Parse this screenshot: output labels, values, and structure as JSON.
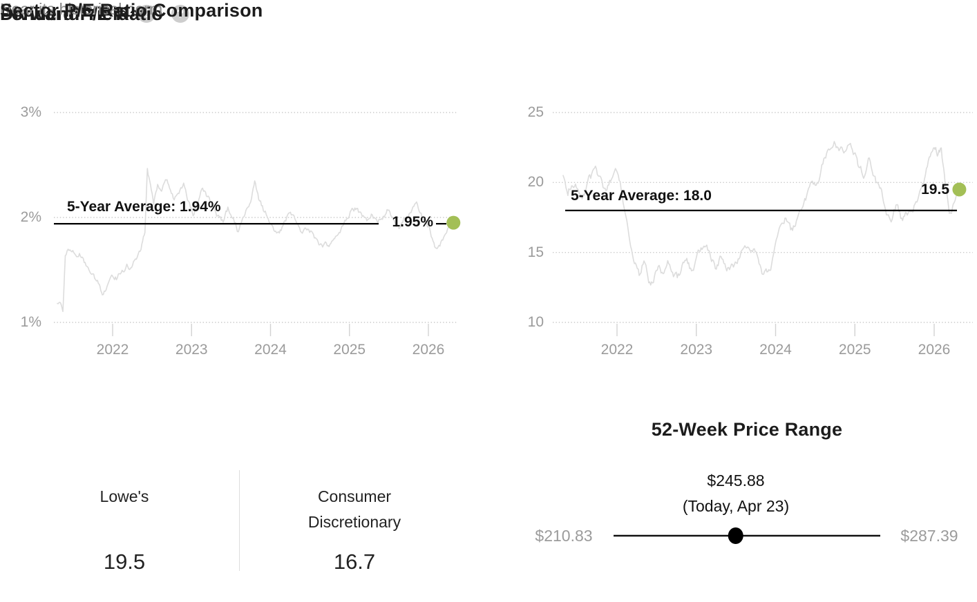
{
  "colors": {
    "accent_green": "#a3bf56",
    "series_line": "#dcdcdc",
    "grid": "#c9c9c9",
    "tick_mark": "#d2d2d2",
    "axis_text": "#9b9b9b",
    "avg_line": "#000000",
    "slider_line": "#111111",
    "slider_dot": "#000000",
    "subtitle_text": "#8f8f8f",
    "divider": "#dddddd",
    "help_icon_bg": "#cdcdcd"
  },
  "icons": {
    "help_glyph": "?"
  },
  "chart_data": [
    {
      "type": "line",
      "title": "Dividend Yield",
      "subtitle": "Near its historical norm",
      "series_name": "Dividend Yield (%)",
      "xlabel": "",
      "ylabel": "",
      "ylim": [
        1,
        3
      ],
      "xlim": [
        2021.3,
        2026.35
      ],
      "grid": "dotted horizontal",
      "legend": "none",
      "yticks": [
        {
          "value": 3,
          "label": "3%"
        },
        {
          "value": 2,
          "label": "2%"
        },
        {
          "value": 1,
          "label": "1%"
        }
      ],
      "xticks": [
        {
          "value": 2022,
          "label": "2022"
        },
        {
          "value": 2023,
          "label": "2023"
        },
        {
          "value": 2024,
          "label": "2024"
        },
        {
          "value": 2025,
          "label": "2025"
        },
        {
          "value": 2026,
          "label": "2026"
        }
      ],
      "average": {
        "value": 1.94,
        "label": "5-Year Average: 1.94%"
      },
      "current": {
        "value": 1.95,
        "label": "1.95%"
      },
      "points": [
        [
          2021.3,
          1.18
        ],
        [
          2021.34,
          1.22
        ],
        [
          2021.37,
          1.16
        ],
        [
          2021.4,
          1.68
        ],
        [
          2021.46,
          1.72
        ],
        [
          2021.52,
          1.66
        ],
        [
          2021.58,
          1.68
        ],
        [
          2021.64,
          1.58
        ],
        [
          2021.7,
          1.5
        ],
        [
          2021.76,
          1.44
        ],
        [
          2021.82,
          1.36
        ],
        [
          2021.87,
          1.24
        ],
        [
          2021.93,
          1.36
        ],
        [
          2022.0,
          1.42
        ],
        [
          2022.06,
          1.42
        ],
        [
          2022.12,
          1.5
        ],
        [
          2022.18,
          1.56
        ],
        [
          2022.24,
          1.52
        ],
        [
          2022.3,
          1.6
        ],
        [
          2022.36,
          1.68
        ],
        [
          2022.41,
          1.85
        ],
        [
          2022.44,
          2.45
        ],
        [
          2022.48,
          2.28
        ],
        [
          2022.52,
          2.12
        ],
        [
          2022.57,
          2.3
        ],
        [
          2022.62,
          2.22
        ],
        [
          2022.67,
          2.35
        ],
        [
          2022.72,
          2.28
        ],
        [
          2022.78,
          2.16
        ],
        [
          2022.84,
          2.24
        ],
        [
          2022.9,
          2.32
        ],
        [
          2022.96,
          2.18
        ],
        [
          2023.02,
          2.05
        ],
        [
          2023.08,
          2.14
        ],
        [
          2023.14,
          2.26
        ],
        [
          2023.2,
          2.18
        ],
        [
          2023.27,
          2.1
        ],
        [
          2023.33,
          2.02
        ],
        [
          2023.4,
          1.96
        ],
        [
          2023.46,
          2.06
        ],
        [
          2023.52,
          1.98
        ],
        [
          2023.58,
          1.88
        ],
        [
          2023.64,
          1.96
        ],
        [
          2023.7,
          2.08
        ],
        [
          2023.76,
          2.2
        ],
        [
          2023.8,
          2.38
        ],
        [
          2023.85,
          2.2
        ],
        [
          2023.91,
          2.08
        ],
        [
          2023.97,
          2.0
        ],
        [
          2024.03,
          1.94
        ],
        [
          2024.1,
          1.84
        ],
        [
          2024.17,
          1.92
        ],
        [
          2024.24,
          2.02
        ],
        [
          2024.31,
          1.96
        ],
        [
          2024.38,
          1.88
        ],
        [
          2024.45,
          1.94
        ],
        [
          2024.52,
          1.86
        ],
        [
          2024.59,
          1.78
        ],
        [
          2024.66,
          1.72
        ],
        [
          2024.73,
          1.7
        ],
        [
          2024.8,
          1.78
        ],
        [
          2024.87,
          1.86
        ],
        [
          2024.94,
          1.94
        ],
        [
          2025.01,
          2.04
        ],
        [
          2025.08,
          2.08
        ],
        [
          2025.15,
          2.02
        ],
        [
          2025.22,
          1.98
        ],
        [
          2025.29,
          2.06
        ],
        [
          2025.36,
          1.96
        ],
        [
          2025.43,
          2.0
        ],
        [
          2025.5,
          2.08
        ],
        [
          2025.57,
          1.98
        ],
        [
          2025.64,
          1.92
        ],
        [
          2025.71,
          2.0
        ],
        [
          2025.78,
          2.06
        ],
        [
          2025.85,
          2.1
        ],
        [
          2025.92,
          2.0
        ],
        [
          2026.0,
          1.92
        ],
        [
          2026.06,
          1.78
        ],
        [
          2026.11,
          1.7
        ],
        [
          2026.17,
          1.78
        ],
        [
          2026.23,
          1.88
        ],
        [
          2026.3,
          1.95
        ]
      ]
    },
    {
      "type": "line",
      "title": "Forward P/E Ratio",
      "subtitle": "Near its historical norm",
      "series_name": "Forward P/E Ratio",
      "xlabel": "",
      "ylabel": "",
      "ylim": [
        10,
        25
      ],
      "xlim": [
        2021.3,
        2026.35
      ],
      "grid": "dotted horizontal",
      "legend": "none",
      "yticks": [
        {
          "value": 25,
          "label": "25"
        },
        {
          "value": 20,
          "label": "20"
        },
        {
          "value": 15,
          "label": "15"
        },
        {
          "value": 10,
          "label": "10"
        }
      ],
      "xticks": [
        {
          "value": 2022,
          "label": "2022"
        },
        {
          "value": 2023,
          "label": "2023"
        },
        {
          "value": 2024,
          "label": "2024"
        },
        {
          "value": 2025,
          "label": "2025"
        },
        {
          "value": 2026,
          "label": "2026"
        }
      ],
      "average": {
        "value": 18.0,
        "label": "5-Year Average: 18.0"
      },
      "current": {
        "value": 19.5,
        "label": "19.5"
      },
      "points": [
        [
          2021.32,
          20.5
        ],
        [
          2021.38,
          19.2
        ],
        [
          2021.44,
          20.2
        ],
        [
          2021.5,
          19.6
        ],
        [
          2021.56,
          19.0
        ],
        [
          2021.62,
          19.8
        ],
        [
          2021.68,
          20.2
        ],
        [
          2021.74,
          20.8
        ],
        [
          2021.8,
          20.2
        ],
        [
          2021.86,
          19.4
        ],
        [
          2021.92,
          20.2
        ],
        [
          2021.98,
          21.0
        ],
        [
          2022.04,
          20.0
        ],
        [
          2022.1,
          18.0
        ],
        [
          2022.16,
          16.4
        ],
        [
          2022.22,
          15.0
        ],
        [
          2022.28,
          13.8
        ],
        [
          2022.34,
          14.8
        ],
        [
          2022.4,
          13.2
        ],
        [
          2022.46,
          12.9
        ],
        [
          2022.52,
          14.2
        ],
        [
          2022.58,
          13.5
        ],
        [
          2022.64,
          14.5
        ],
        [
          2022.7,
          13.1
        ],
        [
          2022.76,
          12.8
        ],
        [
          2022.82,
          13.8
        ],
        [
          2022.88,
          14.3
        ],
        [
          2022.94,
          13.6
        ],
        [
          2023.0,
          14.5
        ],
        [
          2023.06,
          15.1
        ],
        [
          2023.12,
          15.8
        ],
        [
          2023.18,
          15.1
        ],
        [
          2023.24,
          14.3
        ],
        [
          2023.3,
          14.8
        ],
        [
          2023.36,
          14.0
        ],
        [
          2023.42,
          13.7
        ],
        [
          2023.48,
          14.2
        ],
        [
          2023.54,
          14.6
        ],
        [
          2023.6,
          15.2
        ],
        [
          2023.66,
          15.8
        ],
        [
          2023.72,
          15.2
        ],
        [
          2023.78,
          14.4
        ],
        [
          2023.84,
          13.4
        ],
        [
          2023.89,
          13.1
        ],
        [
          2023.95,
          14.2
        ],
        [
          2024.01,
          15.4
        ],
        [
          2024.07,
          16.4
        ],
        [
          2024.13,
          17.3
        ],
        [
          2024.19,
          16.5
        ],
        [
          2024.25,
          17.0
        ],
        [
          2024.31,
          17.6
        ],
        [
          2024.38,
          18.4
        ],
        [
          2024.44,
          19.2
        ],
        [
          2024.5,
          19.8
        ],
        [
          2024.56,
          20.6
        ],
        [
          2024.62,
          21.6
        ],
        [
          2024.68,
          22.6
        ],
        [
          2024.74,
          23.4
        ],
        [
          2024.8,
          22.4
        ],
        [
          2024.86,
          21.9
        ],
        [
          2024.92,
          22.8
        ],
        [
          2024.98,
          22.1
        ],
        [
          2025.05,
          21.0
        ],
        [
          2025.11,
          20.3
        ],
        [
          2025.17,
          21.3
        ],
        [
          2025.23,
          20.5
        ],
        [
          2025.29,
          19.4
        ],
        [
          2025.35,
          18.7
        ],
        [
          2025.41,
          17.9
        ],
        [
          2025.47,
          17.5
        ],
        [
          2025.53,
          18.3
        ],
        [
          2025.59,
          17.2
        ],
        [
          2025.65,
          17.8
        ],
        [
          2025.71,
          18.3
        ],
        [
          2025.77,
          18.9
        ],
        [
          2025.83,
          19.4
        ],
        [
          2025.89,
          20.4
        ],
        [
          2025.95,
          21.6
        ],
        [
          2026.0,
          22.6
        ],
        [
          2026.05,
          21.9
        ],
        [
          2026.09,
          22.3
        ],
        [
          2026.14,
          19.9
        ],
        [
          2026.19,
          17.9
        ],
        [
          2026.24,
          18.7
        ],
        [
          2026.3,
          19.5
        ]
      ]
    }
  ],
  "sector_comparison": {
    "title": "Sector P/E Ratio Comparison",
    "columns": [
      {
        "name": "Lowe's",
        "value": "19.5"
      },
      {
        "name": "Consumer Discretionary",
        "value": "16.7"
      }
    ]
  },
  "price_range": {
    "title": "52-Week Price Range",
    "current_price": "$245.88",
    "current_price_note": "(Today, Apr 23)",
    "low_label": "$210.83",
    "high_label": "$287.39",
    "low_value": 210.83,
    "high_value": 287.39,
    "current_value": 245.88
  }
}
